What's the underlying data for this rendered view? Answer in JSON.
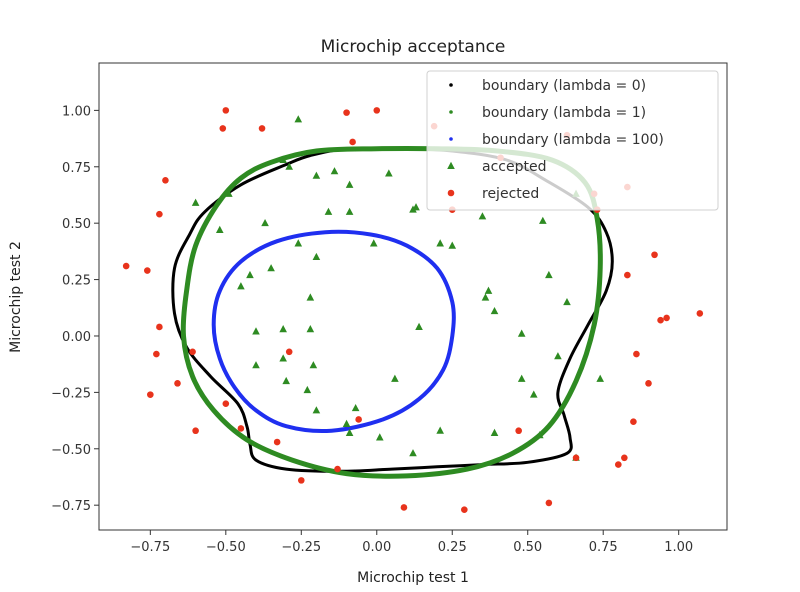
{
  "chart_data": {
    "type": "scatter",
    "title": "Microchip acceptance",
    "xlabel": "Microchip test 1",
    "ylabel": "Microchip test 2",
    "xlim": [
      -0.92,
      1.16
    ],
    "ylim": [
      -0.86,
      1.21
    ],
    "xticks": [
      -0.75,
      -0.5,
      -0.25,
      0.0,
      0.25,
      0.5,
      0.75,
      1.0
    ],
    "xtick_labels": [
      "−0.75",
      "−0.50",
      "−0.25",
      "0.00",
      "0.25",
      "0.50",
      "0.75",
      "1.00"
    ],
    "yticks": [
      -0.75,
      -0.5,
      -0.25,
      0.0,
      0.25,
      0.5,
      0.75,
      1.0
    ],
    "ytick_labels": [
      "−0.75",
      "−0.50",
      "−0.25",
      "0.00",
      "0.25",
      "0.50",
      "0.75",
      "1.00"
    ],
    "grid": false,
    "legend_position": "top-right",
    "colors": {
      "boundary_lambda_0": "#000000",
      "boundary_lambda_1": "#2e8b22",
      "boundary_lambda_100": "#1f2ff0",
      "accepted": "#2e8b22",
      "rejected": "#e8331c",
      "frame": "#333333"
    },
    "legend": [
      {
        "key": "lambda0",
        "label": "boundary (lambda = 0)",
        "marker": "dot",
        "color": "#000000"
      },
      {
        "key": "lambda1",
        "label": "boundary (lambda = 1)",
        "marker": "dot",
        "color": "#2e8b22"
      },
      {
        "key": "lambda100",
        "label": "boundary (lambda = 100)",
        "marker": "dot",
        "color": "#1f2ff0"
      },
      {
        "key": "accepted",
        "label": "accepted",
        "marker": "triangle",
        "color": "#2e8b22"
      },
      {
        "key": "rejected",
        "label": "rejected",
        "marker": "circle",
        "color": "#e8331c"
      }
    ],
    "boundaries": [
      {
        "name": "boundary (lambda = 0)",
        "color": "#000000",
        "points": [
          [
            -0.1,
            0.83
          ],
          [
            0.07,
            0.83
          ],
          [
            0.25,
            0.82
          ],
          [
            0.43,
            0.78
          ],
          [
            0.56,
            0.69
          ],
          [
            0.7,
            0.57
          ],
          [
            0.76,
            0.46
          ],
          [
            0.78,
            0.33
          ],
          [
            0.76,
            0.2
          ],
          [
            0.7,
            0.05
          ],
          [
            0.64,
            -0.1
          ],
          [
            0.6,
            -0.25
          ],
          [
            0.62,
            -0.35
          ],
          [
            0.64,
            -0.45
          ],
          [
            0.63,
            -0.52
          ],
          [
            0.5,
            -0.56
          ],
          [
            0.35,
            -0.57
          ],
          [
            0.2,
            -0.58
          ],
          [
            0.05,
            -0.59
          ],
          [
            -0.12,
            -0.6
          ],
          [
            -0.3,
            -0.59
          ],
          [
            -0.4,
            -0.55
          ],
          [
            -0.42,
            -0.48
          ],
          [
            -0.43,
            -0.4
          ],
          [
            -0.46,
            -0.3
          ],
          [
            -0.55,
            -0.18
          ],
          [
            -0.63,
            -0.05
          ],
          [
            -0.67,
            0.1
          ],
          [
            -0.67,
            0.3
          ],
          [
            -0.62,
            0.45
          ],
          [
            -0.57,
            0.55
          ],
          [
            -0.45,
            0.67
          ],
          [
            -0.3,
            0.76
          ],
          [
            -0.22,
            0.8
          ],
          [
            -0.1,
            0.83
          ]
        ]
      },
      {
        "name": "boundary (lambda = 1)",
        "color": "#2e8b22",
        "points": [
          [
            -0.2,
            0.82
          ],
          [
            0.0,
            0.83
          ],
          [
            0.2,
            0.83
          ],
          [
            0.4,
            0.82
          ],
          [
            0.58,
            0.78
          ],
          [
            0.69,
            0.68
          ],
          [
            0.73,
            0.52
          ],
          [
            0.74,
            0.3
          ],
          [
            0.72,
            0.05
          ],
          [
            0.66,
            -0.2
          ],
          [
            0.57,
            -0.4
          ],
          [
            0.45,
            -0.52
          ],
          [
            0.3,
            -0.59
          ],
          [
            0.1,
            -0.62
          ],
          [
            -0.1,
            -0.61
          ],
          [
            -0.28,
            -0.55
          ],
          [
            -0.43,
            -0.46
          ],
          [
            -0.54,
            -0.33
          ],
          [
            -0.61,
            -0.18
          ],
          [
            -0.64,
            0.0
          ],
          [
            -0.63,
            0.2
          ],
          [
            -0.6,
            0.4
          ],
          [
            -0.53,
            0.58
          ],
          [
            -0.45,
            0.7
          ],
          [
            -0.35,
            0.77
          ],
          [
            -0.2,
            0.82
          ]
        ]
      },
      {
        "name": "boundary (lambda = 100)",
        "color": "#1f2ff0",
        "points": [
          [
            -0.17,
            0.46
          ],
          [
            -0.02,
            0.45
          ],
          [
            0.1,
            0.4
          ],
          [
            0.2,
            0.3
          ],
          [
            0.25,
            0.15
          ],
          [
            0.25,
            0.0
          ],
          [
            0.22,
            -0.15
          ],
          [
            0.14,
            -0.28
          ],
          [
            0.02,
            -0.37
          ],
          [
            -0.15,
            -0.42
          ],
          [
            -0.3,
            -0.4
          ],
          [
            -0.4,
            -0.33
          ],
          [
            -0.47,
            -0.23
          ],
          [
            -0.52,
            -0.1
          ],
          [
            -0.54,
            0.05
          ],
          [
            -0.52,
            0.2
          ],
          [
            -0.45,
            0.33
          ],
          [
            -0.33,
            0.42
          ],
          [
            -0.17,
            0.46
          ]
        ]
      }
    ],
    "series": [
      {
        "name": "accepted",
        "marker": "triangle",
        "color": "#2e8b22",
        "points": [
          [
            -0.26,
            0.96
          ],
          [
            -0.6,
            0.59
          ],
          [
            -0.49,
            0.63
          ],
          [
            -0.31,
            0.78
          ],
          [
            -0.52,
            0.47
          ],
          [
            -0.37,
            0.5
          ],
          [
            -0.35,
            0.3
          ],
          [
            -0.26,
            0.41
          ],
          [
            -0.2,
            0.71
          ],
          [
            -0.14,
            0.73
          ],
          [
            -0.09,
            0.67
          ],
          [
            -0.16,
            0.55
          ],
          [
            -0.09,
            0.55
          ],
          [
            -0.2,
            0.35
          ],
          [
            -0.29,
            0.75
          ],
          [
            0.04,
            0.72
          ],
          [
            -0.01,
            0.41
          ],
          [
            -0.42,
            0.27
          ],
          [
            -0.45,
            0.22
          ],
          [
            -0.22,
            0.17
          ],
          [
            -0.4,
            0.02
          ],
          [
            -0.31,
            0.03
          ],
          [
            -0.22,
            0.03
          ],
          [
            -0.31,
            -0.1
          ],
          [
            -0.21,
            -0.13
          ],
          [
            -0.4,
            -0.13
          ],
          [
            -0.3,
            -0.2
          ],
          [
            -0.23,
            -0.24
          ],
          [
            -0.2,
            -0.33
          ],
          [
            -0.07,
            -0.32
          ],
          [
            -0.1,
            -0.39
          ],
          [
            -0.09,
            -0.43
          ],
          [
            0.06,
            -0.19
          ],
          [
            0.01,
            -0.45
          ],
          [
            0.12,
            -0.52
          ],
          [
            0.21,
            -0.42
          ],
          [
            0.14,
            0.04
          ],
          [
            0.13,
            0.57
          ],
          [
            0.12,
            0.56
          ],
          [
            0.21,
            0.41
          ],
          [
            0.25,
            0.4
          ],
          [
            0.35,
            0.53
          ],
          [
            0.36,
            0.17
          ],
          [
            0.37,
            0.2
          ],
          [
            0.39,
            0.11
          ],
          [
            0.48,
            0.01
          ],
          [
            0.55,
            0.51
          ],
          [
            0.57,
            0.27
          ],
          [
            0.63,
            0.15
          ],
          [
            0.6,
            -0.09
          ],
          [
            0.48,
            -0.19
          ],
          [
            0.52,
            -0.26
          ],
          [
            0.54,
            -0.44
          ],
          [
            0.66,
            -0.54
          ],
          [
            0.66,
            0.63
          ],
          [
            0.74,
            -0.19
          ],
          [
            0.39,
            -0.43
          ]
        ]
      },
      {
        "name": "rejected",
        "marker": "circle",
        "color": "#e8331c",
        "points": [
          [
            -0.83,
            0.31
          ],
          [
            -0.76,
            0.29
          ],
          [
            -0.72,
            0.54
          ],
          [
            -0.7,
            0.69
          ],
          [
            -0.5,
            1.0
          ],
          [
            -0.51,
            0.92
          ],
          [
            -0.38,
            0.92
          ],
          [
            -0.1,
            0.99
          ],
          [
            0.0,
            1.0
          ],
          [
            -0.08,
            0.86
          ],
          [
            0.19,
            0.93
          ],
          [
            0.25,
            0.56
          ],
          [
            0.41,
            0.79
          ],
          [
            0.63,
            0.89
          ],
          [
            0.83,
            0.66
          ],
          [
            0.92,
            0.36
          ],
          [
            0.94,
            0.07
          ],
          [
            0.96,
            0.08
          ],
          [
            1.07,
            0.1
          ],
          [
            0.86,
            -0.08
          ],
          [
            0.9,
            -0.21
          ],
          [
            0.85,
            -0.38
          ],
          [
            0.82,
            -0.54
          ],
          [
            0.8,
            -0.57
          ],
          [
            0.66,
            -0.54
          ],
          [
            0.57,
            -0.74
          ],
          [
            0.29,
            -0.77
          ],
          [
            0.09,
            -0.76
          ],
          [
            -0.25,
            -0.64
          ],
          [
            -0.33,
            -0.47
          ],
          [
            -0.45,
            -0.41
          ],
          [
            -0.5,
            -0.3
          ],
          [
            -0.6,
            -0.42
          ],
          [
            -0.66,
            -0.21
          ],
          [
            -0.73,
            -0.08
          ],
          [
            -0.75,
            -0.26
          ],
          [
            -0.61,
            -0.07
          ],
          [
            -0.72,
            0.04
          ],
          [
            -0.13,
            -0.59
          ],
          [
            -0.06,
            -0.37
          ],
          [
            -0.29,
            -0.07
          ],
          [
            0.47,
            -0.42
          ],
          [
            0.73,
            0.56
          ],
          [
            0.72,
            0.63
          ],
          [
            0.83,
            0.27
          ]
        ]
      }
    ]
  }
}
